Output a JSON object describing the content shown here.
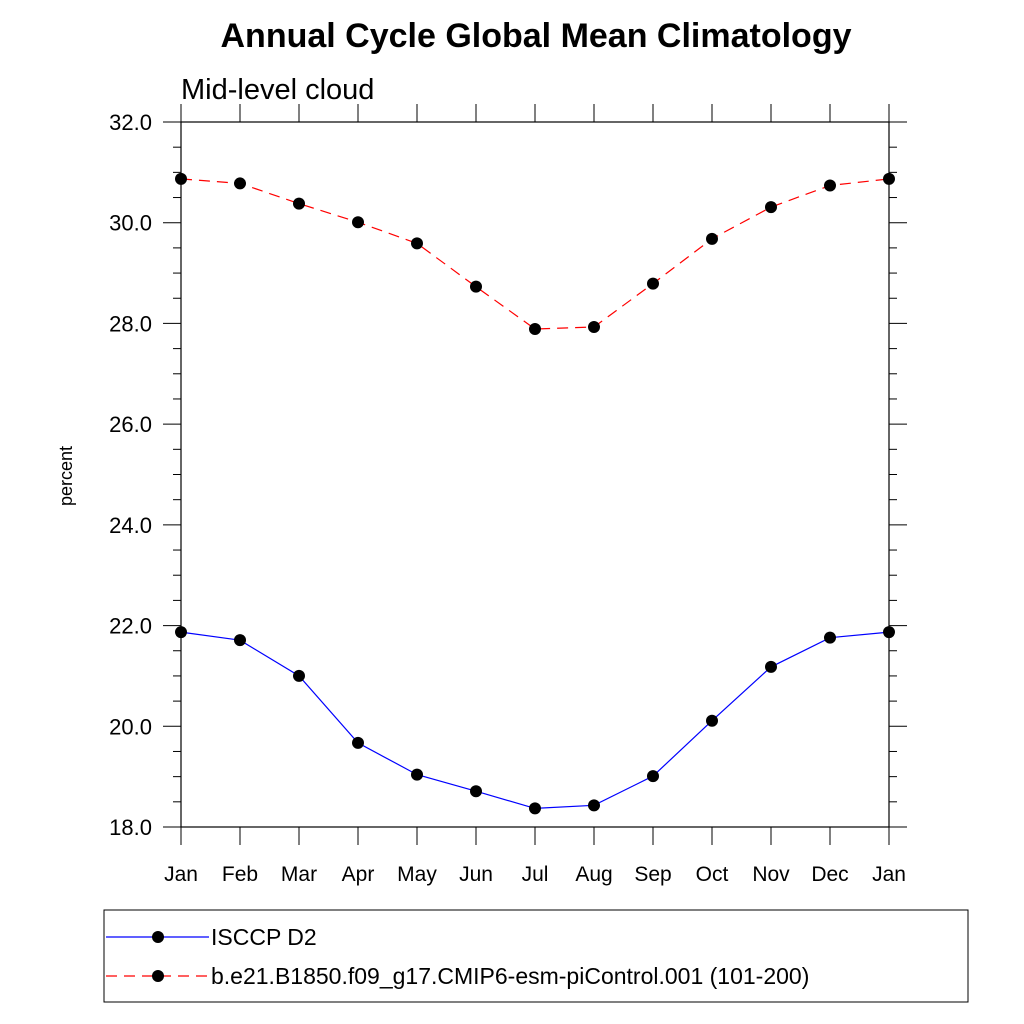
{
  "chart_data": {
    "type": "line",
    "title": "Annual Cycle Global Mean Climatology",
    "subtitle": "Mid-level cloud",
    "xlabel": "",
    "ylabel": "percent",
    "categories": [
      "Jan",
      "Feb",
      "Mar",
      "Apr",
      "May",
      "Jun",
      "Jul",
      "Aug",
      "Sep",
      "Oct",
      "Nov",
      "Dec",
      "Jan"
    ],
    "ylim": [
      18.0,
      32.0
    ],
    "yticks": [
      "18.0",
      "20.0",
      "22.0",
      "24.0",
      "26.0",
      "28.0",
      "30.0",
      "32.0"
    ],
    "ytick_values": [
      18,
      20,
      22,
      24,
      26,
      28,
      30,
      32
    ],
    "grid": false,
    "legend_position": "bottom",
    "series": [
      {
        "name": "ISCCP D2",
        "color": "#0000ff",
        "dash": "solid",
        "values": [
          21.87,
          21.71,
          21.0,
          19.67,
          19.04,
          18.71,
          18.37,
          18.43,
          19.01,
          20.11,
          21.18,
          21.76,
          21.87
        ]
      },
      {
        "name": "b.e21.B1850.f09_g17.CMIP6-esm-piControl.001 (101-200)",
        "color": "#ff0000",
        "dash": "dashed",
        "values": [
          30.87,
          30.78,
          30.38,
          30.01,
          29.59,
          28.73,
          27.89,
          27.93,
          28.79,
          29.68,
          30.31,
          30.74,
          30.87
        ]
      }
    ]
  }
}
